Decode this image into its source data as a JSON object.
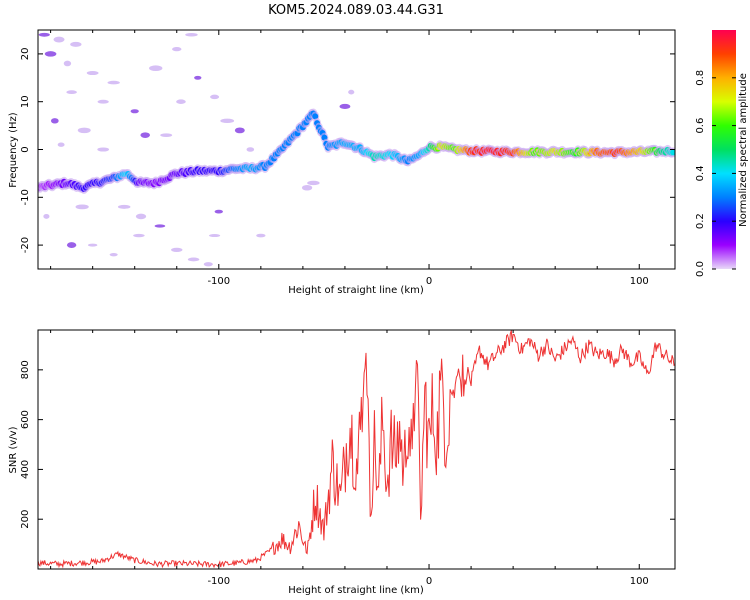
{
  "figure": {
    "title": "KOM5.2024.089.03.44.G31"
  },
  "chart_data": [
    {
      "type": "heatmap",
      "xlabel": "Height of straight line (km)",
      "ylabel": "Frequency (Hz)",
      "xlim": [
        -186,
        117
      ],
      "ylim": [
        -25,
        25
      ],
      "xticks": [
        -100,
        0,
        100
      ],
      "yticks": [
        -20,
        -10,
        0,
        10,
        20
      ],
      "xtick_labels": [
        "-100",
        "0",
        "100"
      ],
      "ytick_labels": [
        "-20",
        "-10",
        "0",
        "10",
        "20"
      ],
      "colorbar": {
        "label": "Normalized spectral amplitude",
        "range": [
          0,
          1
        ],
        "ticks": [
          0.0,
          0.2,
          0.4,
          0.6,
          0.8
        ],
        "tick_labels": [
          "0.0",
          "0.2",
          "0.4",
          "0.6",
          "0.8"
        ],
        "colormap": [
          "#e8d8f8",
          "#9a00ff",
          "#2a00ff",
          "#0080ff",
          "#00e0ff",
          "#00e060",
          "#30ff00",
          "#d8ff00",
          "#ffb000",
          "#ff4000",
          "#ff0050"
        ]
      },
      "ridge": [
        {
          "x": -186,
          "y": -8,
          "v": 0.05
        },
        {
          "x": -180,
          "y": -7.5,
          "v": 0.1
        },
        {
          "x": -172,
          "y": -7,
          "v": 0.15
        },
        {
          "x": -165,
          "y": -8,
          "v": 0.2
        },
        {
          "x": -158,
          "y": -7,
          "v": 0.2
        },
        {
          "x": -150,
          "y": -6,
          "v": 0.25
        },
        {
          "x": -144,
          "y": -5,
          "v": 0.4
        },
        {
          "x": -138,
          "y": -7,
          "v": 0.15
        },
        {
          "x": -130,
          "y": -7,
          "v": 0.12
        },
        {
          "x": -120,
          "y": -5,
          "v": 0.15
        },
        {
          "x": -110,
          "y": -4.5,
          "v": 0.2
        },
        {
          "x": -100,
          "y": -4.5,
          "v": 0.2
        },
        {
          "x": -92,
          "y": -4,
          "v": 0.3
        },
        {
          "x": -85,
          "y": -4,
          "v": 0.35
        },
        {
          "x": -78,
          "y": -3.5,
          "v": 0.3
        },
        {
          "x": -72,
          "y": -1,
          "v": 0.3
        },
        {
          "x": -66,
          "y": 2,
          "v": 0.3
        },
        {
          "x": -60,
          "y": 5,
          "v": 0.3
        },
        {
          "x": -55,
          "y": 7.5,
          "v": 0.3
        },
        {
          "x": -48,
          "y": 0.5,
          "v": 0.3
        },
        {
          "x": -40,
          "y": 1.5,
          "v": 0.35
        },
        {
          "x": -32,
          "y": 0,
          "v": 0.35
        },
        {
          "x": -26,
          "y": -1.5,
          "v": 0.45
        },
        {
          "x": -18,
          "y": -1,
          "v": 0.4
        },
        {
          "x": -10,
          "y": -2.5,
          "v": 0.3
        },
        {
          "x": -4,
          "y": -1,
          "v": 0.35
        },
        {
          "x": 0,
          "y": 0.5,
          "v": 0.45
        },
        {
          "x": 6,
          "y": 0.5,
          "v": 0.7
        },
        {
          "x": 12,
          "y": 0,
          "v": 0.6
        },
        {
          "x": 20,
          "y": -0.3,
          "v": 0.9
        },
        {
          "x": 30,
          "y": -0.4,
          "v": 0.95
        },
        {
          "x": 40,
          "y": -0.5,
          "v": 0.9
        },
        {
          "x": 50,
          "y": -0.5,
          "v": 0.6
        },
        {
          "x": 60,
          "y": -0.5,
          "v": 0.7
        },
        {
          "x": 70,
          "y": -0.5,
          "v": 0.55
        },
        {
          "x": 80,
          "y": -0.6,
          "v": 0.85
        },
        {
          "x": 90,
          "y": -0.6,
          "v": 0.9
        },
        {
          "x": 100,
          "y": -0.5,
          "v": 0.75
        },
        {
          "x": 110,
          "y": -0.4,
          "v": 0.5
        },
        {
          "x": 117,
          "y": -0.3,
          "v": 0.4
        }
      ],
      "speckles": [
        {
          "x": -183,
          "y": 24
        },
        {
          "x": -176,
          "y": 23
        },
        {
          "x": -168,
          "y": 22
        },
        {
          "x": -172,
          "y": 18
        },
        {
          "x": -180,
          "y": 20
        },
        {
          "x": -160,
          "y": 16
        },
        {
          "x": -150,
          "y": 14
        },
        {
          "x": -170,
          "y": 12
        },
        {
          "x": -178,
          "y": 6
        },
        {
          "x": -164,
          "y": 4
        },
        {
          "x": -175,
          "y": 1
        },
        {
          "x": -155,
          "y": 0
        },
        {
          "x": -140,
          "y": 8
        },
        {
          "x": -130,
          "y": 17
        },
        {
          "x": -120,
          "y": 21
        },
        {
          "x": -113,
          "y": 24
        },
        {
          "x": -110,
          "y": 15
        },
        {
          "x": -102,
          "y": 11
        },
        {
          "x": -96,
          "y": 6
        },
        {
          "x": -125,
          "y": 3
        },
        {
          "x": -135,
          "y": 3
        },
        {
          "x": -145,
          "y": -12
        },
        {
          "x": -137,
          "y": -14
        },
        {
          "x": -138,
          "y": -18
        },
        {
          "x": -128,
          "y": -16
        },
        {
          "x": -120,
          "y": -21
        },
        {
          "x": -112,
          "y": -23
        },
        {
          "x": -105,
          "y": -24
        },
        {
          "x": -170,
          "y": -20
        },
        {
          "x": -160,
          "y": -20
        },
        {
          "x": -150,
          "y": -22
        },
        {
          "x": -102,
          "y": -18
        },
        {
          "x": -100,
          "y": -13
        },
        {
          "x": -80,
          "y": -18
        },
        {
          "x": -55,
          "y": -7
        },
        {
          "x": -58,
          "y": -8
        },
        {
          "x": -40,
          "y": 9
        },
        {
          "x": -37,
          "y": 12
        },
        {
          "x": -118,
          "y": 10
        },
        {
          "x": -155,
          "y": 10
        },
        {
          "x": -90,
          "y": 4
        },
        {
          "x": -85,
          "y": 0
        },
        {
          "x": -165,
          "y": -12
        },
        {
          "x": -182,
          "y": -14
        }
      ]
    },
    {
      "type": "line",
      "xlabel": "Height of straight line (km)",
      "ylabel": "SNR (v/v)",
      "xlim": [
        -186,
        117
      ],
      "ylim": [
        0,
        960
      ],
      "xticks": [
        -100,
        0,
        100
      ],
      "yticks": [
        200,
        400,
        600,
        800
      ],
      "xtick_labels": [
        "-100",
        "0",
        "100"
      ],
      "ytick_labels": [
        "200",
        "400",
        "600",
        "800"
      ],
      "color": "#ee3333",
      "series": [
        {
          "x": [
            -186,
            -176,
            -166,
            -156,
            -148,
            -140,
            -130,
            -120,
            -110,
            -100,
            -90,
            -82,
            -76,
            -70,
            -66,
            -62,
            -58,
            -54,
            -50,
            -46,
            -42,
            -38,
            -34,
            -30,
            -28,
            -26,
            -24,
            -22,
            -20,
            -18,
            -16,
            -14,
            -12,
            -10,
            -8,
            -6,
            -4,
            -2,
            0,
            2,
            4,
            6,
            8,
            10,
            12,
            14,
            16,
            18,
            20,
            24,
            28,
            32,
            36,
            40,
            44,
            48,
            52,
            56,
            60,
            64,
            68,
            72,
            76,
            80,
            84,
            88,
            92,
            96,
            100,
            104,
            108,
            112,
            117
          ],
          "values": [
            25,
            20,
            25,
            30,
            60,
            35,
            20,
            22,
            20,
            18,
            25,
            35,
            70,
            120,
            90,
            180,
            60,
            300,
            150,
            420,
            280,
            600,
            400,
            880,
            250,
            500,
            300,
            600,
            350,
            500,
            450,
            560,
            380,
            650,
            400,
            860,
            180,
            720,
            500,
            640,
            530,
            820,
            560,
            720,
            700,
            830,
            680,
            800,
            750,
            880,
            820,
            860,
            900,
            940,
            880,
            920,
            860,
            900,
            840,
            880,
            920,
            850,
            900,
            860,
            870,
            840,
            880,
            830,
            850,
            780,
            900,
            860,
            820
          ]
        }
      ]
    }
  ]
}
